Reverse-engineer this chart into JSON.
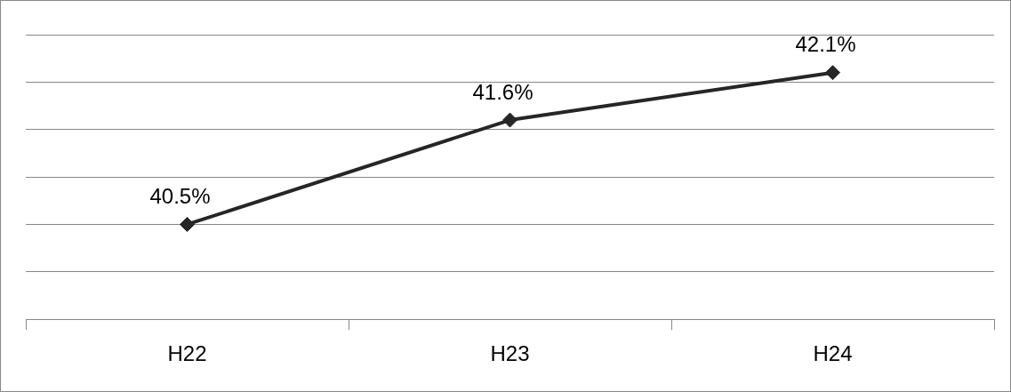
{
  "chart_data": {
    "type": "line",
    "categories": [
      "H22",
      "H23",
      "H24"
    ],
    "series": [
      {
        "color": "#262626",
        "values": [
          40.5,
          41.6,
          42.1
        ],
        "value_labels": [
          "40.5%",
          "41.6%",
          "42.1%"
        ]
      }
    ],
    "ylim": [
      39.5,
      42.5
    ],
    "yticks": [
      {
        "value": 39.5,
        "label": null
      },
      {
        "value": 40,
        "label": null
      },
      {
        "value": 40.5,
        "label": null
      },
      {
        "value": 41,
        "label": null
      },
      {
        "value": 41.5,
        "label": null
      },
      {
        "value": 42,
        "label": null
      },
      {
        "value": 42.5,
        "label": null
      }
    ],
    "tick_labels": "x",
    "grid": "y",
    "marker": "diamond",
    "line_style": "solid",
    "legend": false
  }
}
